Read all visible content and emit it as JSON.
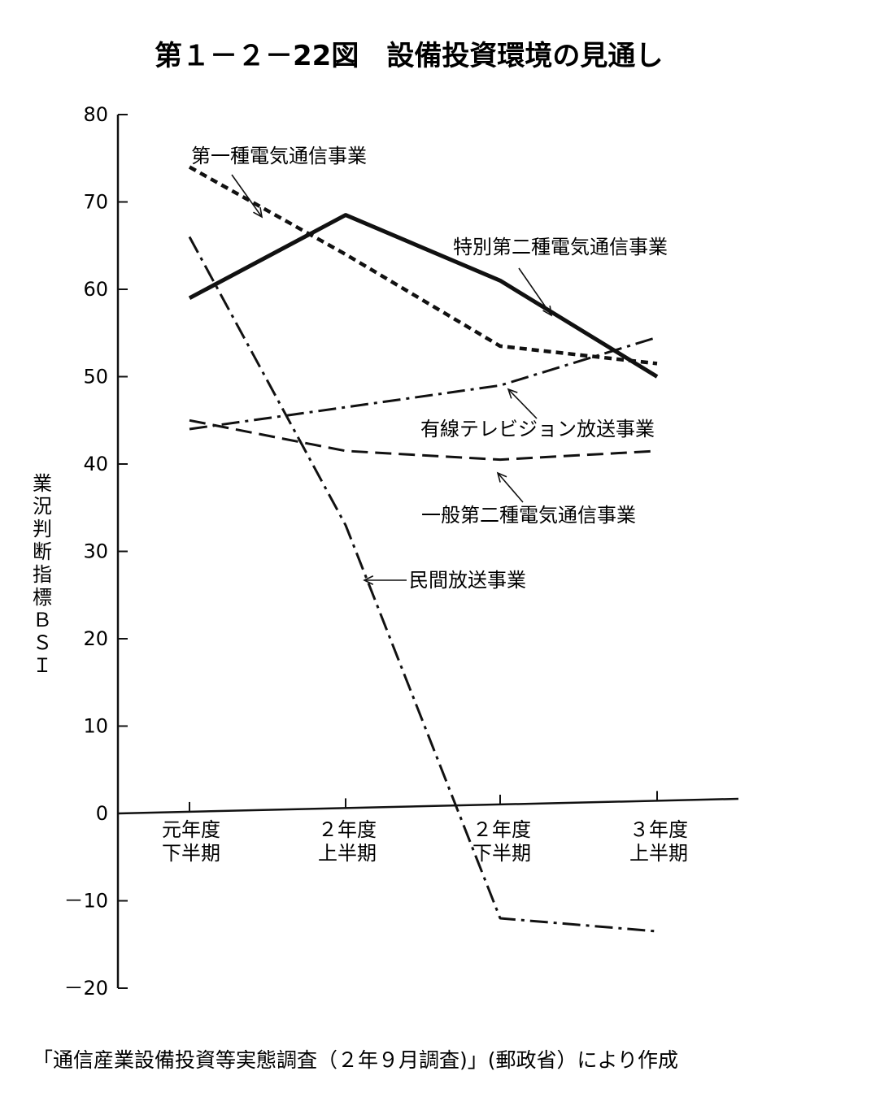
{
  "title": "第１－２－22図　設備投資環境の見通し",
  "source": "「通信産業設備投資等実態調査（２年９月調査)」(郵政省）により作成",
  "chart_data": {
    "type": "line",
    "title": "第１－２－22図　設備投資環境の見通し",
    "ylabel": "業況判断指標ＢＳＩ",
    "ylabel_chars": [
      "業",
      "況",
      "判",
      "断",
      "指",
      "標",
      "Ｂ",
      "Ｓ",
      "Ｉ"
    ],
    "xlabel": "",
    "ylim": [
      -20,
      80
    ],
    "yticks": [
      80,
      70,
      60,
      50,
      40,
      30,
      20,
      10,
      0,
      -10,
      -20
    ],
    "ytick_labels": [
      "80",
      "70",
      "60",
      "50",
      "40",
      "30",
      "20",
      "10",
      "0",
      "－10",
      "－20"
    ],
    "categories": [
      {
        "line1": "元年度",
        "line2": "下半期"
      },
      {
        "line1": "２年度",
        "line2": "上半期"
      },
      {
        "line1": "２年度",
        "line2": "下半期"
      },
      {
        "line1": "３年度",
        "line2": "上半期"
      }
    ],
    "series": [
      {
        "name": "第一種電気通信事業",
        "style": "solid",
        "values": [
          59,
          68.5,
          61,
          50
        ]
      },
      {
        "name": "特別第二種電気通信事業",
        "style": "dashed",
        "values": [
          74,
          64,
          53.5,
          51.5
        ]
      },
      {
        "name": "有線テレビジョン放送事業",
        "style": "dashdot",
        "values": [
          44,
          46.5,
          49,
          54.5
        ]
      },
      {
        "name": "一般第二種電気通信事業",
        "style": "longdash",
        "values": [
          45,
          41.5,
          40.5,
          41.5
        ]
      },
      {
        "name": "民間放送事業",
        "style": "dashdot",
        "values": [
          66,
          33,
          -12,
          -13.5
        ]
      }
    ],
    "grid": false
  }
}
